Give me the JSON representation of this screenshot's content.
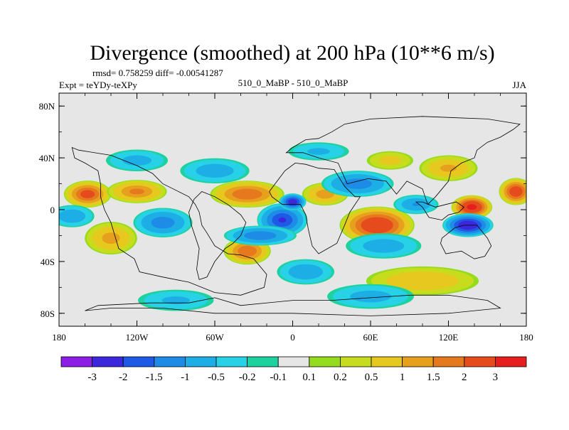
{
  "chart_data": {
    "type": "heatmap",
    "title": "Divergence (smoothed) at 200 hPa (10**6 m/s)",
    "stats": "rmsd= 0.758259 diff= -0.00541287",
    "experiment": "Expt = teYDy-teXPy",
    "center_label": "510_0_MaBP - 510_0_MaBP",
    "season": "JJA",
    "xlim": [
      -180,
      180
    ],
    "ylim": [
      -90,
      90
    ],
    "x_ticks": [
      {
        "value": -180,
        "label": "180"
      },
      {
        "value": -120,
        "label": "120W"
      },
      {
        "value": -60,
        "label": "60W"
      },
      {
        "value": 0,
        "label": "0"
      },
      {
        "value": 60,
        "label": "60E"
      },
      {
        "value": 120,
        "label": "120E"
      },
      {
        "value": 180,
        "label": "180"
      }
    ],
    "y_ticks": [
      {
        "value": 80,
        "label": "80N"
      },
      {
        "value": 40,
        "label": "40N"
      },
      {
        "value": 0,
        "label": "0"
      },
      {
        "value": -40,
        "label": "40S"
      },
      {
        "value": -80,
        "label": "80S"
      }
    ],
    "colorbar": {
      "colors": [
        "#8c1ee6",
        "#3c28dc",
        "#1e5ae6",
        "#1e8ce6",
        "#1eaee6",
        "#28d2e6",
        "#1ed2a0",
        "#e6e6e6",
        "#96dc1e",
        "#c8dc1e",
        "#e6c81e",
        "#e6a01e",
        "#e6781e",
        "#e64b1e",
        "#e61e1e"
      ],
      "boundaries": [
        "-3",
        "-2",
        "-1.5",
        "-1",
        "-0.5",
        "-0.2",
        "-0.1",
        "0.1",
        "0.2",
        "0.5",
        "1",
        "1.5",
        "2",
        "3"
      ]
    },
    "features": [
      {
        "name": "west-pacific-positive-west",
        "lon": -158,
        "lat": 12,
        "rx": 14,
        "ry": 8,
        "value": 2.3
      },
      {
        "name": "west-pacific-positive-center",
        "lon": -120,
        "lat": 14,
        "rx": 18,
        "ry": 7,
        "value": 1.6
      },
      {
        "name": "atlantic-positive-band",
        "lon": -35,
        "lat": 12,
        "rx": 22,
        "ry": 8,
        "value": 2.0
      },
      {
        "name": "africa-positive",
        "lon": 25,
        "lat": 12,
        "rx": 14,
        "ry": 7,
        "value": 1.3
      },
      {
        "name": "indian-ocean-positive",
        "lon": 65,
        "lat": -12,
        "rx": 22,
        "ry": 11,
        "value": 2.8
      },
      {
        "name": "maritime-positive-north",
        "lon": 138,
        "lat": 2,
        "rx": 12,
        "ry": 7,
        "value": 3.2
      },
      {
        "name": "pacific-positive-east",
        "lon": 172,
        "lat": 14,
        "rx": 10,
        "ry": 8,
        "value": 2.6
      },
      {
        "name": "south-atlantic-positive",
        "lon": -35,
        "lat": -32,
        "rx": 14,
        "ry": 8,
        "value": 2.0
      },
      {
        "name": "south-pacific-positive",
        "lon": -140,
        "lat": -22,
        "rx": 16,
        "ry": 10,
        "value": 1.2
      },
      {
        "name": "southern-indian-positive",
        "lon": 100,
        "lat": -55,
        "rx": 35,
        "ry": 9,
        "value": 1.0
      },
      {
        "name": "north-pacific-positive",
        "lon": 120,
        "lat": 32,
        "rx": 18,
        "ry": 8,
        "value": 1.1
      },
      {
        "name": "asia-positive",
        "lon": 75,
        "lat": 38,
        "rx": 15,
        "ry": 6,
        "value": 0.7
      },
      {
        "name": "central-atlantic-negative",
        "lon": -8,
        "lat": -8,
        "rx": 15,
        "ry": 10,
        "value": -2.0
      },
      {
        "name": "central-africa-negative",
        "lon": 0,
        "lat": 6,
        "rx": 8,
        "ry": 5,
        "value": -2.4
      },
      {
        "name": "maritime-negative",
        "lon": 135,
        "lat": -12,
        "rx": 15,
        "ry": 7,
        "value": -2.6
      },
      {
        "name": "east-pacific-negative",
        "lon": -100,
        "lat": -10,
        "rx": 18,
        "ry": 9,
        "value": -1.3
      },
      {
        "name": "west-pacific-negative",
        "lon": -170,
        "lat": -5,
        "rx": 14,
        "ry": 7,
        "value": -0.9
      },
      {
        "name": "north-africa-negative",
        "lon": 50,
        "lat": 20,
        "rx": 22,
        "ry": 8,
        "value": -1.3
      },
      {
        "name": "south-indian-negative",
        "lon": 70,
        "lat": -28,
        "rx": 24,
        "ry": 8,
        "value": -0.8
      },
      {
        "name": "antarctic-negative-east",
        "lon": 60,
        "lat": -67,
        "rx": 28,
        "ry": 8,
        "value": -0.7
      },
      {
        "name": "antarctic-negative-west",
        "lon": -90,
        "lat": -70,
        "rx": 25,
        "ry": 7,
        "value": -0.6
      },
      {
        "name": "subtropical-south-negative",
        "lon": 10,
        "lat": -48,
        "rx": 18,
        "ry": 8,
        "value": -0.9
      },
      {
        "name": "north-atlantic-negative",
        "lon": -60,
        "lat": 30,
        "rx": 22,
        "ry": 8,
        "value": -0.8
      },
      {
        "name": "north-pacific-negative",
        "lon": -120,
        "lat": 38,
        "rx": 20,
        "ry": 7,
        "value": -0.7
      },
      {
        "name": "europe-negative",
        "lon": 20,
        "lat": 45,
        "rx": 20,
        "ry": 6,
        "value": -0.6
      },
      {
        "name": "subtropical-atlantic-negative",
        "lon": -25,
        "lat": -20,
        "rx": 22,
        "ry": 6,
        "value": -1.4
      },
      {
        "name": "indian-negative-east",
        "lon": 95,
        "lat": 4,
        "rx": 14,
        "ry": 6,
        "value": -1.0
      }
    ],
    "coastlines": [
      [
        [
          -168,
          40
        ],
        [
          -160,
          36
        ],
        [
          -150,
          30
        ],
        [
          -148,
          20
        ],
        [
          -148,
          10
        ],
        [
          -145,
          0
        ],
        [
          -140,
          -10
        ],
        [
          -134,
          -30
        ],
        [
          -122,
          -38
        ],
        [
          -118,
          -48
        ],
        [
          -100,
          -52
        ],
        [
          -80,
          -56
        ],
        [
          -60,
          -64
        ],
        [
          -40,
          -66
        ],
        [
          -22,
          -60
        ],
        [
          -20,
          -50
        ],
        [
          -30,
          -38
        ],
        [
          -40,
          -35
        ],
        [
          -50,
          -34
        ],
        [
          -60,
          -28
        ],
        [
          -66,
          -18
        ],
        [
          -70,
          -12
        ],
        [
          -72,
          -2
        ],
        [
          -75,
          4
        ],
        [
          -80,
          10
        ],
        [
          -92,
          16
        ],
        [
          -100,
          20
        ],
        [
          -108,
          28
        ],
        [
          -120,
          34
        ],
        [
          -140,
          42
        ],
        [
          -165,
          46
        ],
        [
          -170,
          48
        ],
        [
          -168,
          40
        ]
      ],
      [
        [
          -70,
          14
        ],
        [
          -60,
          10
        ],
        [
          -50,
          4
        ],
        [
          -40,
          -4
        ],
        [
          -36,
          -10
        ],
        [
          -40,
          -20
        ],
        [
          -46,
          -26
        ],
        [
          -52,
          -30
        ],
        [
          -60,
          -40
        ],
        [
          -66,
          -52
        ],
        [
          -72,
          -54
        ],
        [
          -74,
          -46
        ],
        [
          -72,
          -30
        ],
        [
          -78,
          -12
        ],
        [
          -80,
          -2
        ],
        [
          -76,
          8
        ],
        [
          -70,
          14
        ]
      ],
      [
        [
          -18,
          14
        ],
        [
          -12,
          22
        ],
        [
          -6,
          30
        ],
        [
          2,
          36
        ],
        [
          10,
          35
        ],
        [
          20,
          32
        ],
        [
          32,
          31
        ],
        [
          40,
          18
        ],
        [
          48,
          10
        ],
        [
          52,
          10
        ],
        [
          44,
          -2
        ],
        [
          40,
          -12
        ],
        [
          34,
          -26
        ],
        [
          20,
          -34
        ],
        [
          15,
          -28
        ],
        [
          12,
          -15
        ],
        [
          10,
          -4
        ],
        [
          6,
          4
        ],
        [
          -8,
          4
        ],
        [
          -16,
          10
        ],
        [
          -18,
          14
        ]
      ],
      [
        [
          42,
          20
        ],
        [
          58,
          24
        ],
        [
          72,
          22
        ],
        [
          80,
          12
        ],
        [
          88,
          22
        ],
        [
          100,
          16
        ],
        [
          104,
          4
        ],
        [
          110,
          10
        ],
        [
          120,
          22
        ],
        [
          122,
          30
        ],
        [
          130,
          36
        ],
        [
          140,
          40
        ],
        [
          142,
          46
        ],
        [
          150,
          52
        ],
        [
          160,
          56
        ],
        [
          170,
          62
        ],
        [
          175,
          66
        ],
        [
          150,
          70
        ],
        [
          100,
          72
        ],
        [
          60,
          70
        ],
        [
          40,
          66
        ],
        [
          30,
          60
        ],
        [
          20,
          55
        ],
        [
          10,
          54
        ],
        [
          0,
          48
        ],
        [
          -5,
          44
        ],
        [
          8,
          44
        ],
        [
          20,
          40
        ],
        [
          35,
          36
        ],
        [
          42,
          20
        ]
      ],
      [
        [
          115,
          -22
        ],
        [
          125,
          -14
        ],
        [
          132,
          -12
        ],
        [
          142,
          -12
        ],
        [
          150,
          -22
        ],
        [
          153,
          -28
        ],
        [
          148,
          -36
        ],
        [
          140,
          -38
        ],
        [
          130,
          -32
        ],
        [
          118,
          -34
        ],
        [
          114,
          -26
        ],
        [
          115,
          -22
        ]
      ],
      [
        [
          -60,
          -68
        ],
        [
          -40,
          -74
        ],
        [
          0,
          -70
        ],
        [
          30,
          -70
        ],
        [
          60,
          -68
        ],
        [
          90,
          -66
        ],
        [
          120,
          -66
        ],
        [
          150,
          -70
        ],
        [
          160,
          -76
        ],
        [
          120,
          -80
        ],
        [
          60,
          -82
        ],
        [
          0,
          -80
        ],
        [
          -60,
          -80
        ],
        [
          -100,
          -76
        ],
        [
          -140,
          -76
        ],
        [
          -160,
          -78
        ],
        [
          -150,
          -74
        ],
        [
          -110,
          -72
        ],
        [
          -80,
          -72
        ],
        [
          -60,
          -68
        ]
      ],
      [
        [
          95,
          6
        ],
        [
          100,
          2
        ],
        [
          105,
          -6
        ],
        [
          115,
          -8
        ],
        [
          120,
          -4
        ],
        [
          128,
          -2
        ],
        [
          132,
          2
        ],
        [
          126,
          6
        ],
        [
          118,
          4
        ],
        [
          110,
          2
        ],
        [
          100,
          6
        ],
        [
          95,
          6
        ]
      ]
    ]
  }
}
